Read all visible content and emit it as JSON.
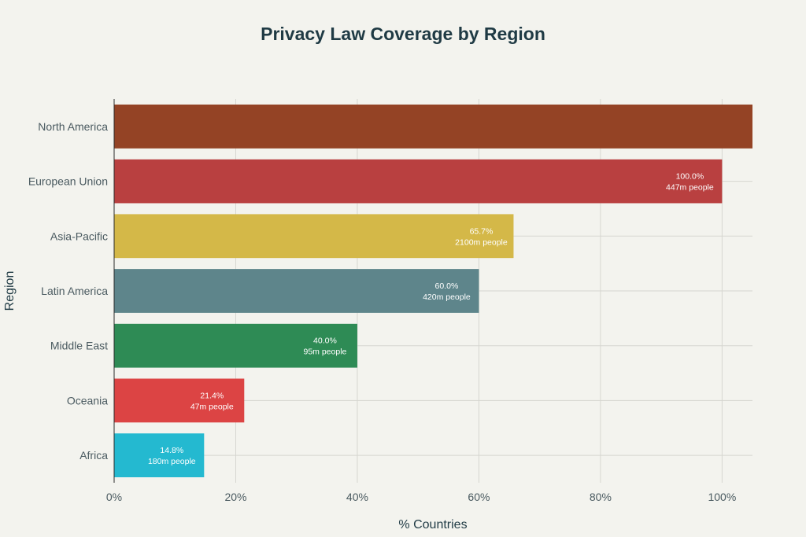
{
  "chart_data": {
    "type": "bar",
    "orientation": "horizontal",
    "title": "Privacy Law Coverage by Region",
    "xlabel": "% Countries",
    "ylabel": "Region",
    "xlim": [
      0,
      105
    ],
    "x_ticks": [
      0,
      20,
      40,
      60,
      80,
      100
    ],
    "x_tick_labels": [
      "0%",
      "20%",
      "40%",
      "60%",
      "80%",
      "100%"
    ],
    "grid": true,
    "categories": [
      "North America",
      "European Union",
      "Asia-Pacific",
      "Latin America",
      "Middle East",
      "Oceania",
      "Africa"
    ],
    "values": [
      105,
      100.0,
      65.7,
      60.0,
      40.0,
      21.4,
      14.8
    ],
    "labels_line1": [
      "",
      "100.0%",
      "65.7%",
      "60.0%",
      "40.0%",
      "21.4%",
      "14.8%"
    ],
    "labels_line2": [
      "",
      "447m people",
      "2100m people",
      "420m people",
      "95m people",
      "47m people",
      "180m people"
    ],
    "colors": [
      "#944325",
      "#b94040",
      "#d4b848",
      "#5e858b",
      "#2e8b55",
      "#dc4444",
      "#24b9d0"
    ]
  }
}
